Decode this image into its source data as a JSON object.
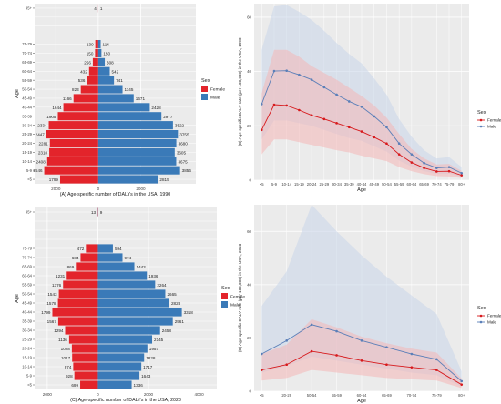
{
  "colors": {
    "female": "#e3242b",
    "male": "#3a7ab8",
    "female_line": "#d7191c",
    "male_line": "#5b7fb8",
    "female_band": "#f4b6b6",
    "male_band": "#c9d6ea",
    "panel_bg": "#ebebeb",
    "grid": "#ffffff"
  },
  "chart_data": [
    {
      "id": "A",
      "type": "bar",
      "subtype": "population-pyramid",
      "caption": "(A) Age-specific number of DALYs in the USA, 1990",
      "ylabel": "Age",
      "x_ticks": [
        -2000,
        0,
        2000
      ],
      "x_tick_labels": [
        "2000",
        "0",
        "2000"
      ],
      "xlim": [
        -3000,
        4600
      ],
      "categories": [
        "<5",
        "5-9",
        "10-14",
        "15-19",
        "20-24",
        "25-29",
        "30-34",
        "35-39",
        "40-44",
        "45-49",
        "50-54",
        "55-59",
        "60-64",
        "65-69",
        "70-74",
        "75-79",
        "80-84",
        "85-89",
        "90-94",
        "95+"
      ],
      "tick_labels": [
        "<5",
        "5-9",
        "10-14",
        "15-19",
        "20-24",
        "25-29",
        "30-34",
        "35-39",
        "40-44",
        "45-49",
        "50-54",
        "55-59",
        "60-64",
        "65-69",
        "70-74",
        "75-79",
        "95+"
      ],
      "legend": {
        "title": "Sex",
        "items": [
          "Female",
          "Male"
        ],
        "position": "right"
      },
      "series": [
        {
          "name": "Female",
          "values": [
            1799,
            2546,
            2408,
            2310,
            2281,
            2447,
            2334,
            1905,
            1644,
            1166,
            823,
            536,
            432,
            256,
            150,
            139,
            0,
            0,
            0,
            4
          ]
        },
        {
          "name": "Male",
          "values": [
            2815,
            3856,
            3675,
            3605,
            3680,
            3755,
            3522,
            2977,
            2428,
            1671,
            1145,
            741,
            542,
            308,
            150,
            114,
            0,
            0,
            0,
            1
          ]
        }
      ]
    },
    {
      "id": "B",
      "type": "line",
      "caption": "(B) Age-specific DALY rate (per 100,000) in the USA, 1990",
      "xlabel": "Age",
      "ylabel": "(B) Age-specific DALY rate (per 100,000) in the USA, 1990",
      "x": [
        "<5",
        "5-9",
        "10-14",
        "15-19",
        "20-24",
        "25-29",
        "30-34",
        "35-39",
        "40-44",
        "45-49",
        "50-54",
        "55-59",
        "60-64",
        "65-69",
        "70-74",
        "75-79",
        "80+"
      ],
      "y_ticks": [
        0,
        20,
        40,
        60
      ],
      "ylim": [
        0,
        65
      ],
      "legend": {
        "title": "Sex",
        "items": [
          "Female",
          "Male"
        ],
        "position": "right"
      },
      "series": [
        {
          "name": "Female",
          "values": [
            18.5,
            27.8,
            27.5,
            25.8,
            23.9,
            22.5,
            21.0,
            19.5,
            17.9,
            15.8,
            13.5,
            9.5,
            6.5,
            4.5,
            3.2,
            3.3,
            1.8
          ],
          "lower": [
            9.5,
            15.0,
            15.0,
            14.0,
            13.0,
            12.0,
            11.0,
            10.2,
            9.0,
            8.0,
            7.0,
            4.8,
            3.3,
            2.2,
            1.5,
            1.4,
            0.8
          ],
          "upper": [
            32.0,
            48.0,
            48.0,
            45.5,
            42.0,
            39.5,
            37.0,
            34.0,
            31.0,
            27.5,
            23.0,
            17.0,
            11.5,
            8.0,
            5.8,
            6.0,
            3.4
          ]
        },
        {
          "name": "Male",
          "values": [
            28.0,
            40.2,
            40.3,
            38.8,
            37.0,
            34.2,
            31.5,
            29.0,
            27.0,
            23.5,
            19.5,
            13.5,
            9.5,
            6.3,
            4.5,
            4.8,
            2.6
          ],
          "lower": [
            15.0,
            22.0,
            22.0,
            21.0,
            20.0,
            18.5,
            17.0,
            15.5,
            14.5,
            12.5,
            10.5,
            7.2,
            5.0,
            3.3,
            2.3,
            2.4,
            1.3
          ],
          "upper": [
            48.0,
            64.0,
            64.5,
            62.0,
            59.0,
            55.0,
            50.5,
            46.5,
            43.0,
            37.5,
            31.5,
            22.5,
            16.0,
            11.0,
            8.0,
            8.5,
            4.8
          ]
        }
      ]
    },
    {
      "id": "C",
      "type": "bar",
      "subtype": "population-pyramid",
      "caption": "(C) Age-specific number of DALYs in the USA, 2023",
      "ylabel": "Age",
      "x_ticks": [
        -2000,
        0,
        2000,
        4000
      ],
      "x_tick_labels": [
        "2000",
        "0",
        "2000",
        "4000"
      ],
      "xlim": [
        -2500,
        4700
      ],
      "categories": [
        "<5",
        "5-9",
        "10-14",
        "15-19",
        "20-24",
        "25-29",
        "30-34",
        "35-39",
        "40-44",
        "45-49",
        "50-54",
        "55-59",
        "60-64",
        "65-69",
        "70-74",
        "75-79",
        "80-84",
        "85-89",
        "90-94",
        "95+"
      ],
      "tick_labels": [
        "<5",
        "5-9",
        "10-14",
        "15-19",
        "20-24",
        "25-29",
        "30-34",
        "35-39",
        "40-44",
        "45-49",
        "50-54",
        "55-59",
        "60-64",
        "65-69",
        "70-74",
        "75-79",
        "95+"
      ],
      "legend": {
        "title": "Sex",
        "items": [
          "Female",
          "Male"
        ],
        "position": "right"
      },
      "series": [
        {
          "name": "Female",
          "values": [
            699,
            928,
            974,
            1017,
            1028,
            1136,
            1294,
            1567,
            1799,
            1578,
            1543,
            1376,
            1231,
            869,
            684,
            472,
            0,
            0,
            0,
            13
          ]
        },
        {
          "name": "Male",
          "values": [
            1336,
            1643,
            1717,
            1828,
            1957,
            2145,
            2458,
            2961,
            3318,
            2828,
            2665,
            2264,
            1936,
            1443,
            974,
            594,
            0,
            0,
            0,
            9
          ]
        }
      ]
    },
    {
      "id": "D",
      "type": "line",
      "caption": "(D) Age-specific DALY rate (per 100,000) in the USA, 2023",
      "xlabel": "Age",
      "ylabel": "(D) Age-specific DALY rate (per 100,000) in the USA, 2023",
      "x": [
        "<5",
        "20-29",
        "50-54",
        "55-59",
        "60-64",
        "65-69",
        "70-74",
        "75-79",
        "80+"
      ],
      "y_ticks": [
        0,
        20,
        40,
        60
      ],
      "ylim": [
        0,
        70
      ],
      "legend": {
        "title": "Sex",
        "items": [
          "Female",
          "Male"
        ],
        "position": "right"
      },
      "series": [
        {
          "name": "Female",
          "values": [
            8.0,
            10.0,
            15.0,
            13.5,
            11.5,
            10.0,
            9.0,
            8.0,
            2.5
          ],
          "lower": [
            4.0,
            5.0,
            8.0,
            7.0,
            6.0,
            5.0,
            4.5,
            4.0,
            1.2
          ],
          "upper": [
            14.0,
            17.5,
            27.0,
            24.0,
            20.5,
            18.0,
            16.0,
            14.5,
            4.8
          ]
        },
        {
          "name": "Male",
          "values": [
            14.0,
            19.0,
            25.0,
            22.5,
            19.0,
            16.5,
            14.0,
            12.0,
            3.8
          ],
          "lower": [
            7.0,
            9.5,
            13.0,
            11.5,
            10.0,
            8.5,
            7.0,
            6.0,
            1.8
          ],
          "upper": [
            32.0,
            45.0,
            70.0,
            60.0,
            51.0,
            43.0,
            36.0,
            29.0,
            7.5
          ]
        }
      ]
    }
  ]
}
